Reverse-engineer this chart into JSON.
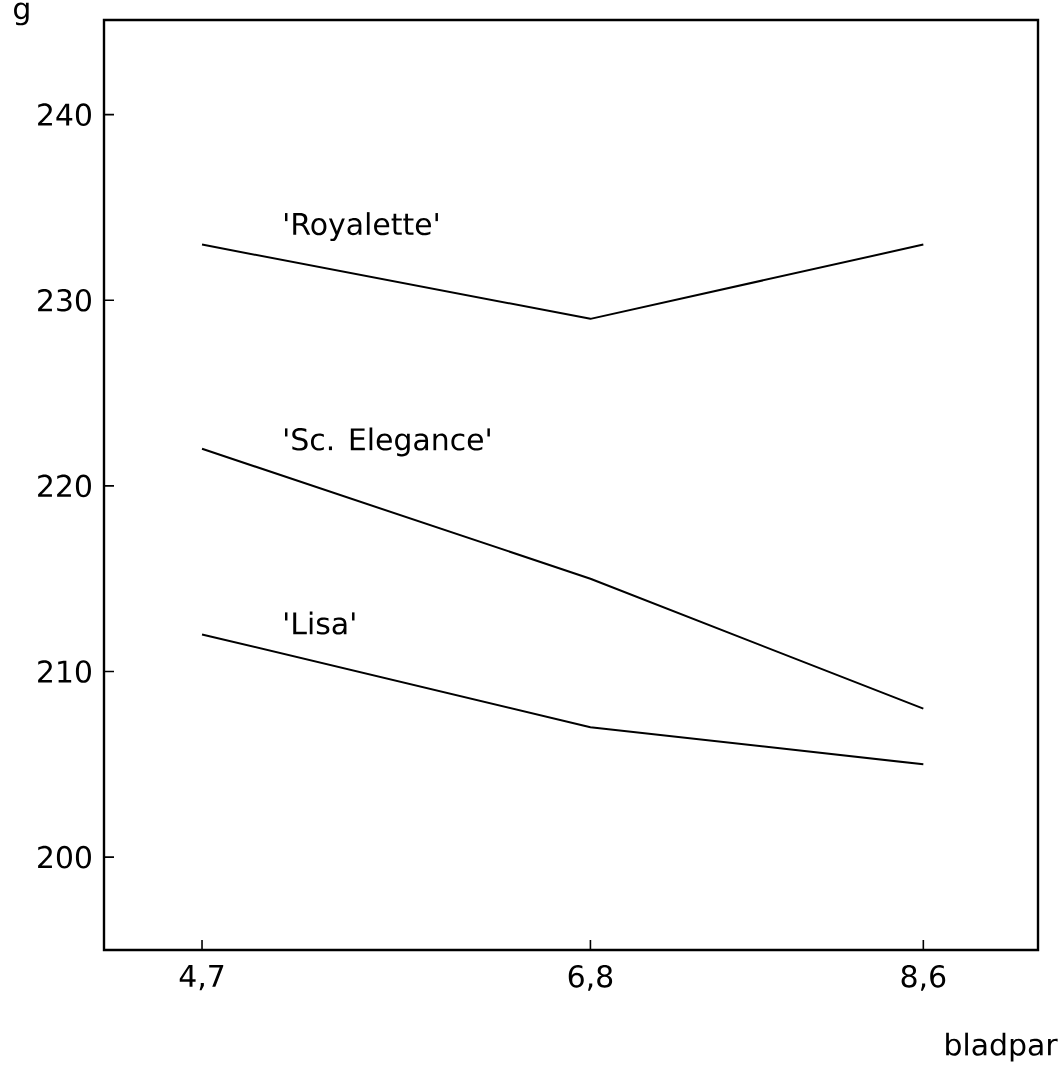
{
  "chart_data": {
    "type": "line",
    "ylabel": "g",
    "xlabel": "bladpar",
    "x": [
      4.7,
      6.8,
      8.6
    ],
    "series": [
      {
        "name": "'Royalette'",
        "color": "#000000",
        "values": [
          233,
          229,
          233
        ]
      },
      {
        "name": "'Sc. Elegance'",
        "color": "#000000",
        "values": [
          222,
          215,
          208
        ]
      },
      {
        "name": "'Lisa'",
        "color": "#000000",
        "values": [
          212,
          207,
          205
        ]
      }
    ],
    "xlim": [
      4.17,
      9.22
    ],
    "ylim": [
      195,
      245.1
    ],
    "xticks": [
      {
        "value": 4.7,
        "label": "4,7"
      },
      {
        "value": 6.8,
        "label": "6,8"
      },
      {
        "value": 8.6,
        "label": "8,6"
      }
    ],
    "yticks": [
      200,
      210,
      220,
      230,
      240
    ],
    "grid": false,
    "legend": false,
    "marker": "none",
    "line_style": "solid"
  }
}
